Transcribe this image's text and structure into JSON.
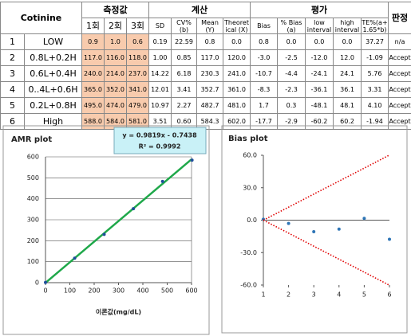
{
  "table": {
    "header_top": [
      "Cotinine",
      "측정값",
      "계산",
      "평가",
      "판정"
    ],
    "header_sub": [
      "1회",
      "2회",
      "3회",
      "SD",
      "CV%\n(b)",
      "Mean\n(Y)",
      "Theoret\nical (X)",
      "Bias",
      "% Bias\n(a)",
      "low\ninterval",
      "high\ninterval",
      "TE%(a+\n1.65*b)"
    ],
    "rows": [
      [
        "1",
        "LOW",
        "0.9",
        "1.0",
        "0.6",
        "0.19",
        "22.59",
        "0.8",
        "0.0",
        "0.8",
        "0.0",
        "0.0",
        "0.0",
        "37.27",
        "n/a"
      ],
      [
        "2",
        "0.8L+0.2H",
        "117.0",
        "116.0",
        "118.0",
        "1.00",
        "0.85",
        "117.0",
        "120.0",
        "-3.0",
        "-2.5",
        "-12.0",
        "12.0",
        "-1.09",
        "Accept"
      ],
      [
        "3",
        "0.6L+0.4H",
        "240.0",
        "214.0",
        "237.0",
        "14.22",
        "6.18",
        "230.3",
        "241.0",
        "-10.7",
        "-4.4",
        "-24.1",
        "24.1",
        "5.76",
        "Accept"
      ],
      [
        "4",
        "0..4L+0.6H",
        "365.0",
        "352.0",
        "341.0",
        "12.01",
        "3.41",
        "352.7",
        "361.0",
        "-8.3",
        "-2.3",
        "-36.1",
        "36.1",
        "3.31",
        "Accept"
      ],
      [
        "5",
        "0.2L+0.8H",
        "495.0",
        "474.0",
        "479.0",
        "10.97",
        "2.27",
        "482.7",
        "481.0",
        "1.7",
        "0.3",
        "-48.1",
        "48.1",
        "4.10",
        "Accept"
      ],
      [
        "6",
        "High",
        "588.0",
        "584.0",
        "581.0",
        "3.51",
        "0.60",
        "584.3",
        "602.0",
        "-17.7",
        "-2.9",
        "-60.2",
        "60.2",
        "-1.94",
        "Accept"
      ]
    ]
  },
  "chart_data": [
    {
      "type": "scatter",
      "title": "AMR plot",
      "xlabel": "이론값(mg/dL)",
      "equation": "y = 0.9819x - 0.7438",
      "r_squared": "R² = 0.9992",
      "trendline": {
        "slope": 0.9819,
        "intercept": -0.7438,
        "color": "#1fa84a"
      },
      "x": [
        0,
        120,
        241,
        361,
        481,
        602
      ],
      "series": [
        {
          "color": "#1f4e9a",
          "values": [
            0.8,
            117.0,
            230.3,
            352.7,
            482.7,
            584.3
          ]
        }
      ],
      "xlim": [
        0,
        600
      ],
      "xticks": [
        0,
        100,
        200,
        300,
        400,
        500,
        600
      ],
      "ylim": [
        0,
        600
      ],
      "yticks": [
        0,
        100,
        200,
        300,
        400,
        500,
        600
      ],
      "grid": true
    },
    {
      "type": "scatter",
      "title": "Bias plot",
      "x": [
        1,
        2,
        3,
        4,
        5,
        6
      ],
      "series": [
        {
          "color": "#2e75b6",
          "values": [
            0.8,
            -3.0,
            -10.7,
            -8.3,
            1.7,
            -17.7
          ]
        },
        {
          "color": "#e00000",
          "line": "dotted",
          "values": [
            0.0,
            -12.0,
            -24.1,
            -36.1,
            -48.1,
            -60.2
          ]
        },
        {
          "color": "#e00000",
          "line": "dotted",
          "values": [
            0.0,
            12.0,
            24.1,
            36.1,
            48.1,
            60.2
          ]
        }
      ],
      "xlim": [
        1,
        6
      ],
      "xticks": [
        1,
        2,
        3,
        4,
        5,
        6
      ],
      "ylim": [
        -60,
        60
      ],
      "yticks": [
        {
          "value": -60,
          "label": "-60.0"
        },
        {
          "value": -30,
          "label": "-30.0"
        },
        {
          "value": 0,
          "label": "0.0"
        },
        {
          "value": 30,
          "label": "30.0"
        },
        {
          "value": 60,
          "label": "60.0"
        }
      ],
      "grid": false
    }
  ]
}
